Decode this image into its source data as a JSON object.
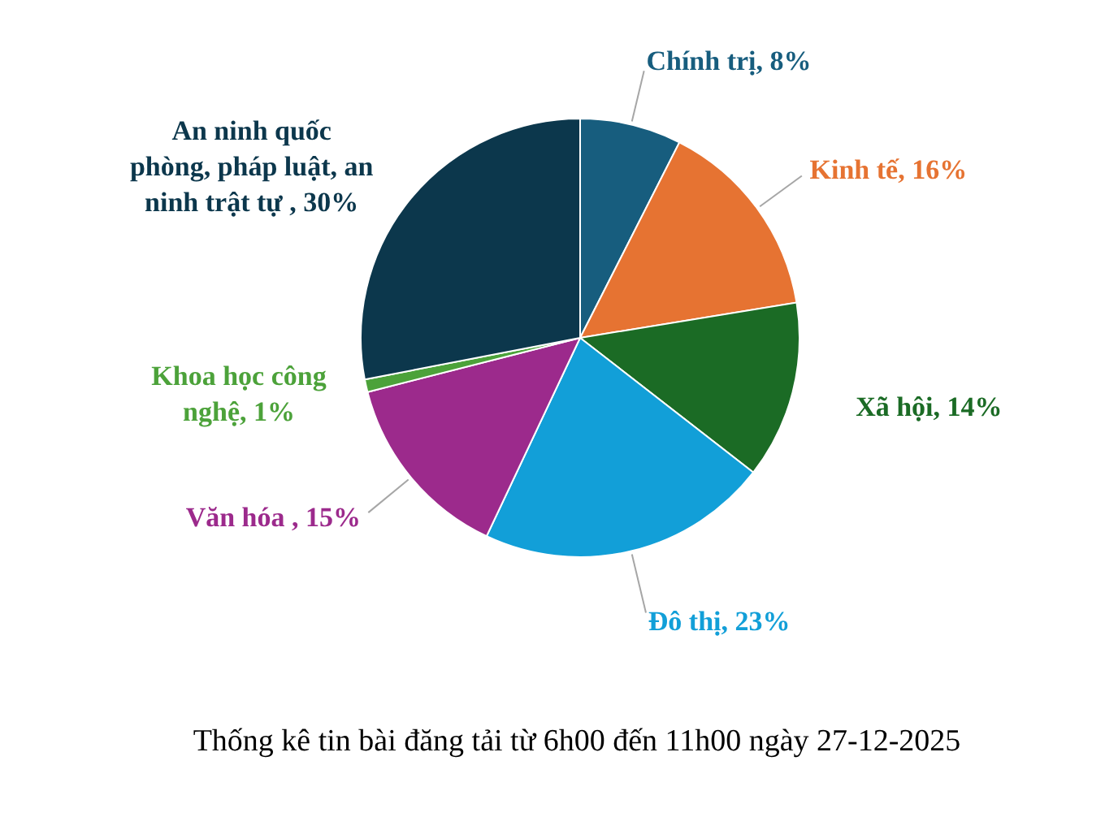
{
  "chart_data": {
    "type": "pie",
    "title": "Thống kê tin bài đăng tải từ 6h00 đến 11h00 ngày 27-12-2025",
    "categories": [
      "Chính trị",
      "Kinh tế",
      "Xã hội",
      "Đô thị",
      "Văn hóa ",
      "Khoa học công nghệ",
      "An ninh quốc phòng, pháp luật, an ninh trật tự "
    ],
    "values": [
      8,
      16,
      14,
      23,
      15,
      1,
      30
    ],
    "value_labels": [
      "8%",
      "16%",
      "14%",
      "23%",
      "15%",
      "1%",
      "30%"
    ],
    "colors": [
      "#175d7e",
      "#e67332",
      "#1b6b25",
      "#129fd8",
      "#9c2a8c",
      "#4ca23a",
      "#0c374c"
    ],
    "legend": false
  }
}
